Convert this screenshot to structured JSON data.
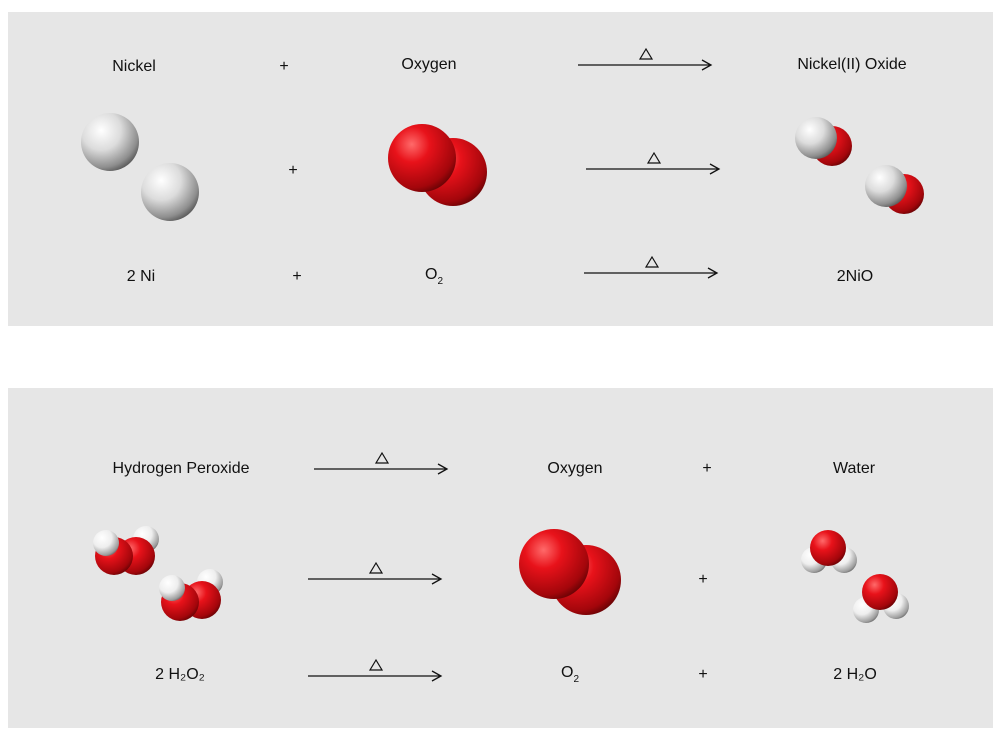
{
  "reaction1": {
    "names": {
      "reactant1": "Nickel",
      "reactant2": "Oxygen",
      "product": "Nickel(II) Oxide"
    },
    "formulas": {
      "reactant1": "2 Ni",
      "reactant2_base": "O",
      "reactant2_sub": "2",
      "product": "2NiO"
    },
    "plus": "+",
    "heat_symbol": "heat-triangle"
  },
  "reaction2": {
    "names": {
      "reactant": "Hydrogen Peroxide",
      "product1": "Oxygen",
      "product2": "Water"
    },
    "formulas": {
      "reactant": "2 H₂O₂",
      "product1_base": "O",
      "product1_sub": "2",
      "product2": "2 H₂O"
    },
    "plus": "+",
    "heat_symbol": "heat-triangle"
  },
  "colors": {
    "panel": "#e6e6e6",
    "oxygen": "#e0141a",
    "nickel": "#d9d9d9",
    "hydrogen": "#f2f2f2"
  }
}
